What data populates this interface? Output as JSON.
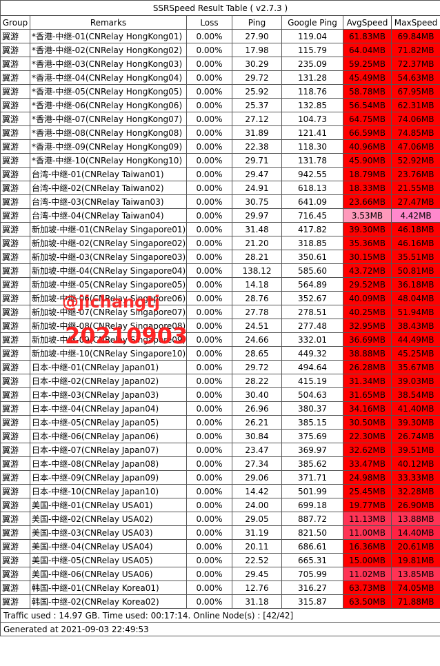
{
  "title": "SSRSpeed Result Table ( v2.7.3 )",
  "headers": [
    "Group",
    "Remarks",
    "Loss",
    "Ping",
    "Google Ping",
    "AvgSpeed",
    "MaxSpeed"
  ],
  "rows": [
    {
      "group": "翼游",
      "remarks": "*香港-中继-01(CNRelay HongKong01)",
      "loss": "0.00%",
      "ping": "27.90",
      "gping": "119.04",
      "avg": "61.83MB",
      "max": "69.84MB",
      "avg_color": "#ff0000",
      "max_color": "#ff0000"
    },
    {
      "group": "翼游",
      "remarks": "*香港-中继-02(CNRelay HongKong02)",
      "loss": "0.00%",
      "ping": "17.98",
      "gping": "115.79",
      "avg": "64.04MB",
      "max": "71.82MB",
      "avg_color": "#ff0000",
      "max_color": "#ff0000"
    },
    {
      "group": "翼游",
      "remarks": "*香港-中继-03(CNRelay HongKong03)",
      "loss": "0.00%",
      "ping": "30.29",
      "gping": "235.09",
      "avg": "59.25MB",
      "max": "72.37MB",
      "avg_color": "#ff0000",
      "max_color": "#ff0000"
    },
    {
      "group": "翼游",
      "remarks": "*香港-中继-04(CNRelay HongKong04)",
      "loss": "0.00%",
      "ping": "29.72",
      "gping": "131.28",
      "avg": "45.49MB",
      "max": "54.63MB",
      "avg_color": "#ff0000",
      "max_color": "#ff0000"
    },
    {
      "group": "翼游",
      "remarks": "*香港-中继-05(CNRelay HongKong05)",
      "loss": "0.00%",
      "ping": "25.92",
      "gping": "118.76",
      "avg": "58.78MB",
      "max": "67.95MB",
      "avg_color": "#ff0000",
      "max_color": "#ff0000"
    },
    {
      "group": "翼游",
      "remarks": "*香港-中继-06(CNRelay HongKong06)",
      "loss": "0.00%",
      "ping": "25.37",
      "gping": "132.85",
      "avg": "56.54MB",
      "max": "62.31MB",
      "avg_color": "#ff0000",
      "max_color": "#ff0000"
    },
    {
      "group": "翼游",
      "remarks": "*香港-中继-07(CNRelay HongKong07)",
      "loss": "0.00%",
      "ping": "27.12",
      "gping": "104.73",
      "avg": "64.75MB",
      "max": "74.06MB",
      "avg_color": "#ff0000",
      "max_color": "#ff0000"
    },
    {
      "group": "翼游",
      "remarks": "*香港-中继-08(CNRelay HongKong08)",
      "loss": "0.00%",
      "ping": "31.89",
      "gping": "121.41",
      "avg": "66.59MB",
      "max": "74.85MB",
      "avg_color": "#ff0000",
      "max_color": "#ff0000"
    },
    {
      "group": "翼游",
      "remarks": "*香港-中继-09(CNRelay HongKong09)",
      "loss": "0.00%",
      "ping": "22.38",
      "gping": "118.30",
      "avg": "40.96MB",
      "max": "47.06MB",
      "avg_color": "#ff0000",
      "max_color": "#ff0000"
    },
    {
      "group": "翼游",
      "remarks": "*香港-中继-10(CNRelay HongKong10)",
      "loss": "0.00%",
      "ping": "29.71",
      "gping": "131.78",
      "avg": "45.90MB",
      "max": "52.92MB",
      "avg_color": "#ff0000",
      "max_color": "#ff0000"
    },
    {
      "group": "翼游",
      "remarks": "台湾-中继-01(CNRelay Taiwan01)",
      "loss": "0.00%",
      "ping": "29.47",
      "gping": "942.55",
      "avg": "18.79MB",
      "max": "23.76MB",
      "avg_color": "#ff0000",
      "max_color": "#ff0000"
    },
    {
      "group": "翼游",
      "remarks": "台湾-中继-02(CNRelay Taiwan02)",
      "loss": "0.00%",
      "ping": "24.91",
      "gping": "618.13",
      "avg": "18.33MB",
      "max": "21.55MB",
      "avg_color": "#ff0000",
      "max_color": "#ff0000"
    },
    {
      "group": "翼游",
      "remarks": "台湾-中继-03(CNRelay Taiwan03)",
      "loss": "0.00%",
      "ping": "30.75",
      "gping": "641.09",
      "avg": "23.66MB",
      "max": "27.47MB",
      "avg_color": "#ff0000",
      "max_color": "#ff0000"
    },
    {
      "group": "翼游",
      "remarks": "台湾-中继-04(CNRelay Taiwan04)",
      "loss": "0.00%",
      "ping": "29.97",
      "gping": "716.45",
      "avg": "3.53MB",
      "max": "4.42MB",
      "avg_color": "#ff99bb",
      "max_color": "#ff88cc"
    },
    {
      "group": "翼游",
      "remarks": "新加坡-中继-01(CNRelay Singapore01)",
      "loss": "0.00%",
      "ping": "31.48",
      "gping": "417.82",
      "avg": "39.30MB",
      "max": "46.18MB",
      "avg_color": "#ff0000",
      "max_color": "#ff0000"
    },
    {
      "group": "翼游",
      "remarks": "新加坡-中继-02(CNRelay Singapore02)",
      "loss": "0.00%",
      "ping": "21.20",
      "gping": "318.85",
      "avg": "35.36MB",
      "max": "46.16MB",
      "avg_color": "#ff0000",
      "max_color": "#ff0000"
    },
    {
      "group": "翼游",
      "remarks": "新加坡-中继-03(CNRelay Singapore03)",
      "loss": "0.00%",
      "ping": "28.21",
      "gping": "350.61",
      "avg": "30.15MB",
      "max": "35.51MB",
      "avg_color": "#ff0000",
      "max_color": "#ff0000"
    },
    {
      "group": "翼游",
      "remarks": "新加坡-中继-04(CNRelay Singapore04)",
      "loss": "0.00%",
      "ping": "138.12",
      "gping": "585.60",
      "avg": "43.72MB",
      "max": "50.81MB",
      "avg_color": "#ff0000",
      "max_color": "#ff0000"
    },
    {
      "group": "翼游",
      "remarks": "新加坡-中继-05(CNRelay Singapore05)",
      "loss": "0.00%",
      "ping": "14.18",
      "gping": "564.89",
      "avg": "29.52MB",
      "max": "36.18MB",
      "avg_color": "#ff0000",
      "max_color": "#ff0000"
    },
    {
      "group": "翼游",
      "remarks": "新加坡-中继-06(CNRelay Singapore06)",
      "loss": "0.00%",
      "ping": "28.76",
      "gping": "352.67",
      "avg": "40.09MB",
      "max": "48.04MB",
      "avg_color": "#ff0000",
      "max_color": "#ff0000"
    },
    {
      "group": "翼游",
      "remarks": "新加坡-中继-07(CNRelay Singapore07)",
      "loss": "0.00%",
      "ping": "27.78",
      "gping": "278.51",
      "avg": "40.25MB",
      "max": "51.94MB",
      "avg_color": "#ff0000",
      "max_color": "#ff0000"
    },
    {
      "group": "翼游",
      "remarks": "新加坡-中继-08(CNRelay Singapore08)",
      "loss": "0.00%",
      "ping": "24.51",
      "gping": "277.48",
      "avg": "32.95MB",
      "max": "38.43MB",
      "avg_color": "#ff0000",
      "max_color": "#ff0000"
    },
    {
      "group": "翼游",
      "remarks": "新加坡-中继-09(CNRelay Singapore09)",
      "loss": "0.00%",
      "ping": "24.66",
      "gping": "332.01",
      "avg": "36.69MB",
      "max": "44.49MB",
      "avg_color": "#ff0000",
      "max_color": "#ff0000"
    },
    {
      "group": "翼游",
      "remarks": "新加坡-中继-10(CNRelay Singapore10)",
      "loss": "0.00%",
      "ping": "28.65",
      "gping": "449.32",
      "avg": "38.88MB",
      "max": "45.25MB",
      "avg_color": "#ff0000",
      "max_color": "#ff0000"
    },
    {
      "group": "翼游",
      "remarks": "日本-中继-01(CNRelay Japan01)",
      "loss": "0.00%",
      "ping": "29.72",
      "gping": "494.64",
      "avg": "26.28MB",
      "max": "35.67MB",
      "avg_color": "#ff0000",
      "max_color": "#ff0000"
    },
    {
      "group": "翼游",
      "remarks": "日本-中继-02(CNRelay Japan02)",
      "loss": "0.00%",
      "ping": "28.22",
      "gping": "415.19",
      "avg": "31.34MB",
      "max": "39.03MB",
      "avg_color": "#ff0000",
      "max_color": "#ff0000"
    },
    {
      "group": "翼游",
      "remarks": "日本-中继-03(CNRelay Japan03)",
      "loss": "0.00%",
      "ping": "30.40",
      "gping": "504.63",
      "avg": "31.65MB",
      "max": "38.54MB",
      "avg_color": "#ff0000",
      "max_color": "#ff0000"
    },
    {
      "group": "翼游",
      "remarks": "日本-中继-04(CNRelay Japan04)",
      "loss": "0.00%",
      "ping": "26.96",
      "gping": "380.37",
      "avg": "34.16MB",
      "max": "41.40MB",
      "avg_color": "#ff0000",
      "max_color": "#ff0000"
    },
    {
      "group": "翼游",
      "remarks": "日本-中继-05(CNRelay Japan05)",
      "loss": "0.00%",
      "ping": "26.21",
      "gping": "385.15",
      "avg": "30.50MB",
      "max": "39.30MB",
      "avg_color": "#ff0000",
      "max_color": "#ff0000"
    },
    {
      "group": "翼游",
      "remarks": "日本-中继-06(CNRelay Japan06)",
      "loss": "0.00%",
      "ping": "30.84",
      "gping": "375.69",
      "avg": "22.30MB",
      "max": "26.74MB",
      "avg_color": "#ff0000",
      "max_color": "#ff0000"
    },
    {
      "group": "翼游",
      "remarks": "日本-中继-07(CNRelay Japan07)",
      "loss": "0.00%",
      "ping": "23.47",
      "gping": "369.97",
      "avg": "32.62MB",
      "max": "39.51MB",
      "avg_color": "#ff0000",
      "max_color": "#ff0000"
    },
    {
      "group": "翼游",
      "remarks": "日本-中继-08(CNRelay Japan08)",
      "loss": "0.00%",
      "ping": "27.34",
      "gping": "385.62",
      "avg": "33.47MB",
      "max": "40.12MB",
      "avg_color": "#ff0000",
      "max_color": "#ff0000"
    },
    {
      "group": "翼游",
      "remarks": "日本-中继-09(CNRelay Japan09)",
      "loss": "0.00%",
      "ping": "29.06",
      "gping": "371.71",
      "avg": "24.98MB",
      "max": "33.33MB",
      "avg_color": "#ff0000",
      "max_color": "#ff0000"
    },
    {
      "group": "翼游",
      "remarks": "日本-中继-10(CNRelay Japan10)",
      "loss": "0.00%",
      "ping": "14.42",
      "gping": "501.99",
      "avg": "25.45MB",
      "max": "32.28MB",
      "avg_color": "#ff0000",
      "max_color": "#ff0000"
    },
    {
      "group": "翼游",
      "remarks": "美国-中继-01(CNRelay USA01)",
      "loss": "0.00%",
      "ping": "24.00",
      "gping": "699.18",
      "avg": "19.77MB",
      "max": "26.90MB",
      "avg_color": "#ff0000",
      "max_color": "#ff0000"
    },
    {
      "group": "翼游",
      "remarks": "美国-中继-02(CNRelay USA02)",
      "loss": "0.00%",
      "ping": "29.05",
      "gping": "887.72",
      "avg": "11.13MB",
      "max": "13.88MB",
      "avg_color": "#ff3355",
      "max_color": "#ff3355"
    },
    {
      "group": "翼游",
      "remarks": "美国-中继-03(CNRelay USA03)",
      "loss": "0.00%",
      "ping": "31.19",
      "gping": "821.50",
      "avg": "11.00MB",
      "max": "14.40MB",
      "avg_color": "#ff3355",
      "max_color": "#ff2244"
    },
    {
      "group": "翼游",
      "remarks": "美国-中继-04(CNRelay USA04)",
      "loss": "0.00%",
      "ping": "20.11",
      "gping": "686.61",
      "avg": "16.36MB",
      "max": "20.61MB",
      "avg_color": "#ff0000",
      "max_color": "#ff0000"
    },
    {
      "group": "翼游",
      "remarks": "美国-中继-05(CNRelay USA05)",
      "loss": "0.00%",
      "ping": "22.52",
      "gping": "665.31",
      "avg": "15.00MB",
      "max": "19.81MB",
      "avg_color": "#ff0000",
      "max_color": "#ff0000"
    },
    {
      "group": "翼游",
      "remarks": "美国-中继-06(CNRelay USA06)",
      "loss": "0.00%",
      "ping": "29.45",
      "gping": "705.99",
      "avg": "11.02MB",
      "max": "13.85MB",
      "avg_color": "#ff3355",
      "max_color": "#ff3355"
    },
    {
      "group": "翼游",
      "remarks": "韩国-中继-01(CNRelay Korea01)",
      "loss": "0.00%",
      "ping": "12.76",
      "gping": "316.27",
      "avg": "63.73MB",
      "max": "74.05MB",
      "avg_color": "#ff0000",
      "max_color": "#ff0000"
    },
    {
      "group": "翼游",
      "remarks": "韩国-中继-02(CNRelay Korea02)",
      "loss": "0.00%",
      "ping": "31.18",
      "gping": "315.87",
      "avg": "63.50MB",
      "max": "71.88MB",
      "avg_color": "#ff0000",
      "max_color": "#ff0000"
    }
  ],
  "footer_traffic": "Traffic used : 14.97 GB. Time used: 00:17:14. Online Node(s) : [42/42]",
  "footer_generated": "Generated at 2021-09-03 22:49:53",
  "watermark_handle": "@jichangtj",
  "watermark_date": "20210903"
}
